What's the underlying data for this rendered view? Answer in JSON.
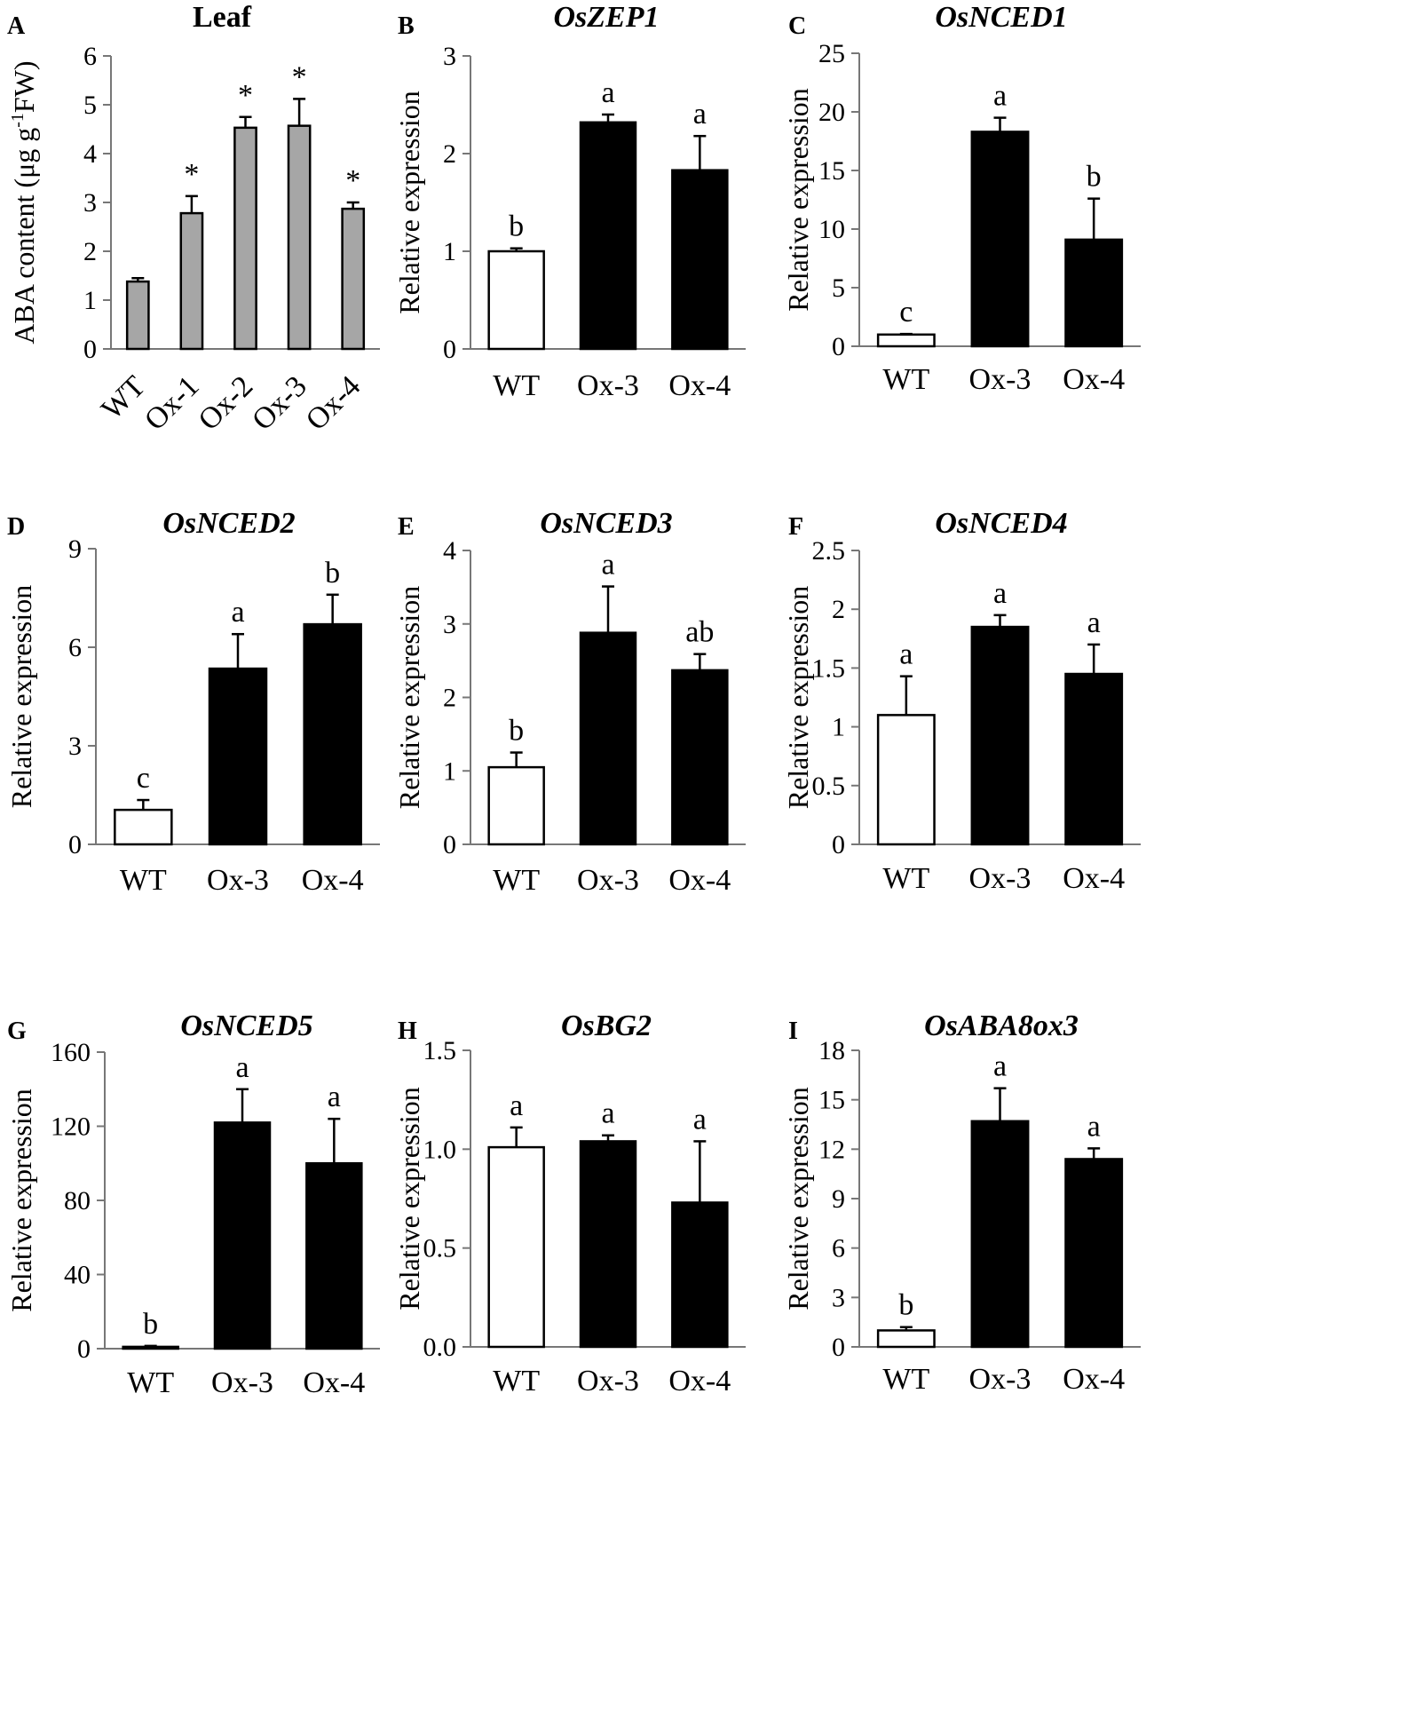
{
  "chart_data": [
    {
      "panel": "A",
      "type": "bar",
      "title": "Leaf",
      "title_italic": false,
      "ylabel": "ABA content (μg g-1FW)",
      "ylabel_parts": [
        "ABA content (μg g",
        "-1",
        "FW)"
      ],
      "ylim": [
        0,
        6
      ],
      "yticks": [
        "0",
        "1",
        "2",
        "3",
        "4",
        "5",
        "6"
      ],
      "categories": [
        "WT",
        "Ox-1",
        "Ox-2",
        "Ox-3",
        "Ox-4"
      ],
      "values": [
        1.38,
        2.78,
        4.53,
        4.57,
        2.87
      ],
      "errors": [
        0.07,
        0.35,
        0.22,
        0.55,
        0.13
      ],
      "annotations": [
        "",
        "*",
        "*",
        "*",
        "*"
      ],
      "colors": [
        "#a6a6a6",
        "#a6a6a6",
        "#a6a6a6",
        "#a6a6a6",
        "#a6a6a6"
      ],
      "rotated_categories": true
    },
    {
      "panel": "B",
      "type": "bar",
      "title": "OsZEP1",
      "title_italic": true,
      "ylabel": "Relative expression",
      "ylim": [
        0,
        3
      ],
      "yticks": [
        "0",
        "1",
        "2",
        "3"
      ],
      "categories": [
        "WT",
        "Ox-3",
        "Ox-4"
      ],
      "values": [
        1.0,
        2.32,
        1.83
      ],
      "errors": [
        0.03,
        0.08,
        0.35
      ],
      "annotations": [
        "b",
        "a",
        "a"
      ],
      "colors": [
        "#ffffff",
        "#000000",
        "#000000"
      ]
    },
    {
      "panel": "C",
      "type": "bar",
      "title": "OsNCED1",
      "title_italic": true,
      "ylabel": "Relative expression",
      "ylim": [
        0,
        25
      ],
      "yticks": [
        "0",
        "5",
        "10",
        "15",
        "20",
        "25"
      ],
      "categories": [
        "WT",
        "Ox-3",
        "Ox-4"
      ],
      "values": [
        1.0,
        18.3,
        9.1
      ],
      "errors": [
        0.05,
        1.2,
        3.5
      ],
      "annotations": [
        "c",
        "a",
        "b"
      ],
      "colors": [
        "#ffffff",
        "#000000",
        "#000000"
      ]
    },
    {
      "panel": "D",
      "type": "bar",
      "title": "OsNCED2",
      "title_italic": true,
      "ylabel": "Relative expression",
      "ylim": [
        0,
        9
      ],
      "yticks": [
        "0",
        "3",
        "6",
        "9"
      ],
      "categories": [
        "WT",
        "Ox-3",
        "Ox-4"
      ],
      "values": [
        1.05,
        5.35,
        6.7
      ],
      "errors": [
        0.3,
        1.05,
        0.9
      ],
      "annotations": [
        "c",
        "a",
        "b"
      ],
      "colors": [
        "#ffffff",
        "#000000",
        "#000000"
      ]
    },
    {
      "panel": "E",
      "type": "bar",
      "title": "OsNCED3",
      "title_italic": true,
      "ylabel": "Relative expression",
      "ylim": [
        0,
        4
      ],
      "yticks": [
        "0",
        "1",
        "2",
        "3",
        "4"
      ],
      "categories": [
        "WT",
        "Ox-3",
        "Ox-4"
      ],
      "values": [
        1.05,
        2.88,
        2.37
      ],
      "errors": [
        0.2,
        0.63,
        0.22
      ],
      "annotations": [
        "b",
        "a",
        "ab"
      ],
      "colors": [
        "#ffffff",
        "#000000",
        "#000000"
      ]
    },
    {
      "panel": "F",
      "type": "bar",
      "title": "OsNCED4",
      "title_italic": true,
      "ylabel": "Relative expression",
      "ylim": [
        0,
        2.5
      ],
      "yticks": [
        "0",
        "0.5",
        "1",
        "1.5",
        "2",
        "2.5"
      ],
      "categories": [
        "WT",
        "Ox-3",
        "Ox-4"
      ],
      "values": [
        1.1,
        1.85,
        1.45
      ],
      "errors": [
        0.33,
        0.1,
        0.25
      ],
      "annotations": [
        "a",
        "a",
        "a"
      ],
      "colors": [
        "#ffffff",
        "#000000",
        "#000000"
      ]
    },
    {
      "panel": "G",
      "type": "bar",
      "title": "OsNCED5",
      "title_italic": true,
      "ylabel": "Relative expression",
      "ylim": [
        0,
        160
      ],
      "yticks": [
        "0",
        "40",
        "80",
        "120",
        "160"
      ],
      "categories": [
        "WT",
        "Ox-3",
        "Ox-4"
      ],
      "values": [
        1.0,
        122,
        100
      ],
      "errors": [
        0.5,
        18,
        24
      ],
      "annotations": [
        "b",
        "a",
        "a"
      ],
      "colors": [
        "#ffffff",
        "#000000",
        "#000000"
      ]
    },
    {
      "panel": "H",
      "type": "bar",
      "title": "OsBG2",
      "title_italic": true,
      "ylabel": "Relative expression",
      "ylim": [
        0,
        1.5
      ],
      "yticks": [
        "0.0",
        "0.5",
        "1.0",
        "1.5"
      ],
      "categories": [
        "WT",
        "Ox-3",
        "Ox-4"
      ],
      "values": [
        1.01,
        1.04,
        0.73
      ],
      "errors": [
        0.1,
        0.03,
        0.31
      ],
      "annotations": [
        "a",
        "a",
        "a"
      ],
      "colors": [
        "#ffffff",
        "#000000",
        "#000000"
      ]
    },
    {
      "panel": "I",
      "type": "bar",
      "title": "OsABA8ox3",
      "title_italic": true,
      "ylabel": "Relative expression",
      "ylim": [
        0,
        18
      ],
      "yticks": [
        "0",
        "3",
        "6",
        "9",
        "12",
        "15",
        "18"
      ],
      "categories": [
        "WT",
        "Ox-3",
        "Ox-4"
      ],
      "values": [
        1.0,
        13.7,
        11.4
      ],
      "errors": [
        0.2,
        2.0,
        0.65
      ],
      "annotations": [
        "b",
        "a",
        "a"
      ],
      "colors": [
        "#ffffff",
        "#000000",
        "#000000"
      ]
    }
  ]
}
